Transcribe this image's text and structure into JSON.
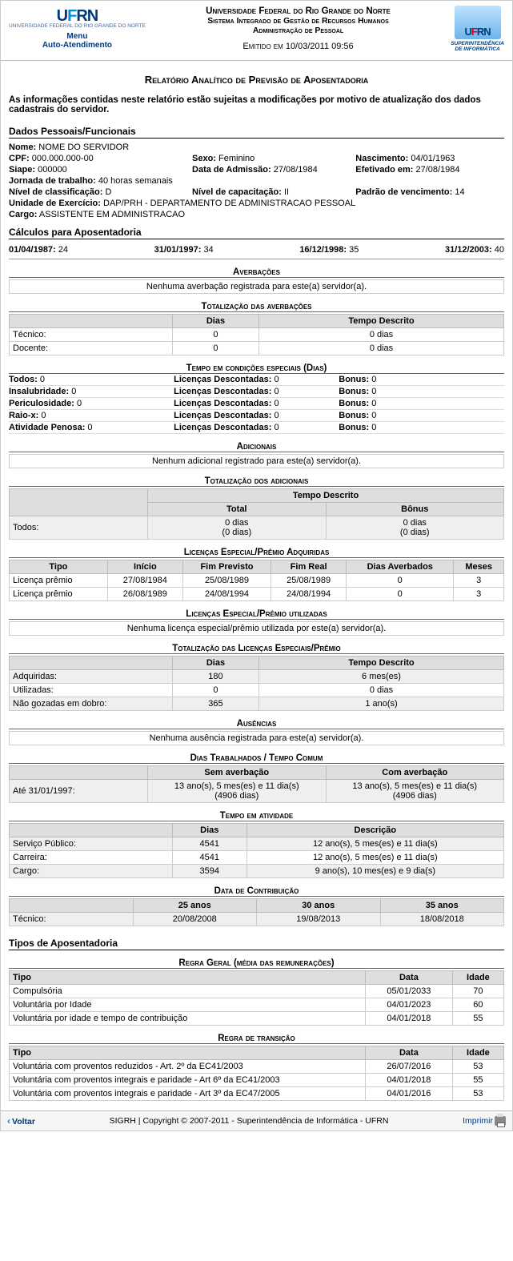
{
  "header": {
    "menu": "Menu",
    "menu2": "Auto-Atendimento",
    "uni": "Universidade Federal do Rio Grande do Norte",
    "sys": "Sistema Integrado de Gestão de Recursos Humanos",
    "adm": "Administração de Pessoal",
    "emitted": "Emitido em 10/03/2011 09:56",
    "si1": "SUPERINTENDÊNCIA",
    "si2": "DE INFORMÁTICA"
  },
  "reportTitle": "Relatório Analítico de Previsão de Aposentadoria",
  "notice": "As informações contidas neste relatório estão sujeitas a modificações por motivo de atualização dos dados cadastrais do servidor.",
  "dados": {
    "title": "Dados Pessoais/Funcionais",
    "nome_l": "Nome:",
    "nome": "NOME DO SERVIDOR",
    "cpf_l": "CPF:",
    "cpf": "000.000.000-00",
    "sexo_l": "Sexo:",
    "sexo": "Feminino",
    "nasc_l": "Nascimento:",
    "nasc": "04/01/1963",
    "siape_l": "Siape:",
    "siape": "000000",
    "admissao_l": "Data de Admissão:",
    "admissao": "27/08/1984",
    "efet_l": "Efetivado em:",
    "efet": "27/08/1984",
    "jornada_l": "Jornada de trabalho:",
    "jornada": "40 horas semanais",
    "nclass_l": "Nível de classificação:",
    "nclass": "D",
    "ncap_l": "Nível de capacitação:",
    "ncap": "II",
    "pven_l": "Padrão de vencimento:",
    "pven": "14",
    "unid_l": "Unidade de Exercício:",
    "unid": "DAP/PRH - DEPARTAMENTO DE ADMINISTRACAO PESSOAL",
    "cargo_l": "Cargo:",
    "cargo": "ASSISTENTE EM ADMINISTRACAO"
  },
  "calc": {
    "title": "Cálculos para Aposentadoria",
    "d1l": "01/04/1987:",
    "d1v": "24",
    "d2l": "31/01/1997:",
    "d2v": "34",
    "d3l": "16/12/1998:",
    "d3v": "35",
    "d4l": "31/12/2003:",
    "d4v": "40"
  },
  "averb": {
    "title": "Averbações",
    "msg": "Nenhuma averbação registrada para este(a) servidor(a)."
  },
  "totAverb": {
    "title": "Totalização das averbações",
    "hDias": "Dias",
    "hTempo": "Tempo Descrito",
    "r1": "Técnico:",
    "r1d": "0",
    "r1t": "0 dias",
    "r2": "Docente:",
    "r2d": "0",
    "r2t": "0 dias"
  },
  "special": {
    "title": "Tempo em condições especiais (Dias)",
    "rows": [
      {
        "a": "Todos:",
        "av": "0",
        "b": "Licenças Descontadas:",
        "bv": "0",
        "c": "Bonus:",
        "cv": "0"
      },
      {
        "a": "Insalubridade:",
        "av": "0",
        "b": "Licenças Descontadas:",
        "bv": "0",
        "c": "Bonus:",
        "cv": "0"
      },
      {
        "a": "Periculosidade:",
        "av": "0",
        "b": "Licenças Descontadas:",
        "bv": "0",
        "c": "Bonus:",
        "cv": "0"
      },
      {
        "a": "Raio-x:",
        "av": "0",
        "b": "Licenças Descontadas:",
        "bv": "0",
        "c": "Bonus:",
        "cv": "0"
      },
      {
        "a": "Atividade Penosa:",
        "av": "0",
        "b": "Licenças Descontadas:",
        "bv": "0",
        "c": "Bonus:",
        "cv": "0"
      }
    ]
  },
  "adic": {
    "title": "Adicionais",
    "msg": "Nenhum adicional registrado para este(a) servidor(a)."
  },
  "totAdic": {
    "title": "Totalização dos adicionais",
    "hTempo": "Tempo Descrito",
    "hTotal": "Total",
    "hBonus": "Bônus",
    "row": "Todos:",
    "tot": "0 dias",
    "tot2": "(0 dias)",
    "bon": "0 dias",
    "bon2": "(0 dias)"
  },
  "licAdq": {
    "title": "Licenças Especial/Prêmio Adquiridas",
    "h": [
      "Tipo",
      "Início",
      "Fim Previsto",
      "Fim Real",
      "Dias Averbados",
      "Meses"
    ],
    "rows": [
      [
        "Licença prêmio",
        "27/08/1984",
        "25/08/1989",
        "25/08/1989",
        "0",
        "3"
      ],
      [
        "Licença prêmio",
        "26/08/1989",
        "24/08/1994",
        "24/08/1994",
        "0",
        "3"
      ]
    ]
  },
  "licUt": {
    "title": "Licenças Especial/Prêmio utilizadas",
    "msg": "Nenhuma licença especial/prêmio utilizada por este(a) servidor(a)."
  },
  "totLic": {
    "title": "Totalização das Licenças Especiais/Prêmio",
    "hDias": "Dias",
    "hTempo": "Tempo Descrito",
    "rows": [
      [
        "Adquiridas:",
        "180",
        "6 mes(es)"
      ],
      [
        "Utilizadas:",
        "0",
        "0 dias"
      ],
      [
        "Não gozadas em dobro:",
        "365",
        "1 ano(s)"
      ]
    ]
  },
  "aus": {
    "title": "Ausências",
    "msg": "Nenhuma ausência registrada para este(a) servidor(a)."
  },
  "diasTrab": {
    "title": "Dias Trabalhados / Tempo Comum",
    "hSem": "Sem averbação",
    "hCom": "Com averbação",
    "row": "Até 31/01/1997:",
    "v1a": "13 ano(s), 5 mes(es) e 11 dia(s)",
    "v1b": "(4906 dias)",
    "v2a": "13 ano(s), 5 mes(es) e 11 dia(s)",
    "v2b": "(4906 dias)"
  },
  "ativ": {
    "title": "Tempo em atividade",
    "hDias": "Dias",
    "hDesc": "Descrição",
    "rows": [
      [
        "Serviço Público:",
        "4541",
        "12 ano(s), 5 mes(es) e 11 dia(s)"
      ],
      [
        "Carreira:",
        "4541",
        "12 ano(s), 5 mes(es) e 11 dia(s)"
      ],
      [
        "Cargo:",
        "3594",
        "9 ano(s), 10 mes(es) e 9 dia(s)"
      ]
    ]
  },
  "contrib": {
    "title": "Data de Contribuição",
    "h": [
      "25 anos",
      "30 anos",
      "35 anos"
    ],
    "row": "Técnico:",
    "v": [
      "20/08/2008",
      "19/08/2013",
      "18/08/2018"
    ]
  },
  "tipos": {
    "title": "Tipos de Aposentadoria"
  },
  "regra1": {
    "title": "Regra Geral (média das remunerações)",
    "h": [
      "Tipo",
      "Data",
      "Idade"
    ],
    "rows": [
      [
        "Compulsória",
        "05/01/2033",
        "70"
      ],
      [
        "Voluntária por Idade",
        "04/01/2023",
        "60"
      ],
      [
        "Voluntária por idade e tempo de contribuição",
        "04/01/2018",
        "55"
      ]
    ]
  },
  "regra2": {
    "title": "Regra de transição",
    "h": [
      "Tipo",
      "Data",
      "Idade"
    ],
    "rows": [
      [
        "Voluntária com proventos reduzidos - Art. 2º da EC41/2003",
        "26/07/2016",
        "53"
      ],
      [
        "Voluntária com proventos integrais e paridade - Art 6º da EC41/2003",
        "04/01/2018",
        "55"
      ],
      [
        "Voluntária com proventos integrais e paridade - Art 3º da EC47/2005",
        "04/01/2016",
        "53"
      ]
    ]
  },
  "footer": {
    "voltar": "Voltar",
    "copy": "SIGRH | Copyright © 2007-2011 - Superintendência de Informática - UFRN",
    "imp": "Imprimir"
  }
}
